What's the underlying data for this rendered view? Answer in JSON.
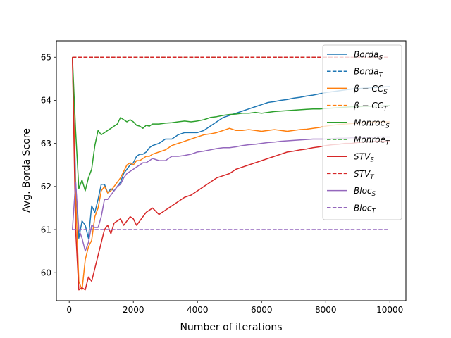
{
  "chart_data": {
    "type": "line",
    "title": "",
    "xlabel": "Number of iterations",
    "ylabel": "Avg. Borda Score",
    "xlim": [
      -400,
      10500
    ],
    "ylim": [
      59.35,
      65.38
    ],
    "xticks": [
      0,
      2000,
      4000,
      6000,
      8000,
      10000
    ],
    "xtick_labels": [
      "0",
      "2000",
      "4000",
      "6000",
      "8000",
      "10000"
    ],
    "yticks": [
      60,
      61,
      62,
      63,
      64,
      65
    ],
    "ytick_labels": [
      "60",
      "61",
      "62",
      "63",
      "64",
      "65"
    ],
    "grid": false,
    "legend_position": "top-right",
    "series": [
      {
        "name": "Borda_S",
        "label_main": "Borda",
        "label_sub": "S",
        "color": "#1f77b4",
        "style": "solid",
        "x": [
          100,
          200,
          300,
          400,
          500,
          600,
          700,
          800,
          900,
          1000,
          1100,
          1200,
          1300,
          1400,
          1500,
          1600,
          1700,
          1800,
          1900,
          2000,
          2100,
          2200,
          2300,
          2400,
          2500,
          2600,
          2800,
          3000,
          3200,
          3400,
          3600,
          3800,
          4000,
          4200,
          4400,
          4600,
          4800,
          5000,
          5200,
          5400,
          5600,
          5800,
          6000,
          6200,
          6400,
          6600,
          6800,
          7000,
          7200,
          7400,
          7600,
          7800,
          8000,
          8200,
          8400,
          8600,
          8800,
          9000,
          9200,
          9400,
          9600,
          9800,
          10000
        ],
        "y": [
          65.0,
          62.1,
          60.8,
          61.2,
          61.1,
          60.8,
          61.55,
          61.4,
          61.7,
          62.05,
          62.05,
          61.85,
          61.95,
          61.9,
          62.0,
          62.1,
          62.3,
          62.4,
          62.5,
          62.55,
          62.7,
          62.75,
          62.75,
          62.8,
          62.9,
          62.95,
          63.0,
          63.1,
          63.1,
          63.2,
          63.25,
          63.25,
          63.25,
          63.3,
          63.4,
          63.5,
          63.6,
          63.65,
          63.7,
          63.75,
          63.8,
          63.85,
          63.9,
          63.95,
          63.97,
          64.0,
          64.02,
          64.05,
          64.07,
          64.1,
          64.12,
          64.15,
          64.18,
          64.2,
          64.22,
          64.24,
          64.26,
          64.27,
          64.28,
          64.29,
          64.3,
          64.31,
          64.32
        ]
      },
      {
        "name": "Borda_T",
        "label_main": "Borda",
        "label_sub": "T",
        "color": "#1f77b4",
        "style": "dashed",
        "x": [
          100,
          10000
        ],
        "y": [
          65.0,
          65.0
        ]
      },
      {
        "name": "β−CC_S",
        "label_main": "β − CC",
        "label_sub": "S",
        "color": "#ff7f0e",
        "style": "solid",
        "x": [
          100,
          200,
          300,
          400,
          500,
          600,
          700,
          800,
          900,
          1000,
          1100,
          1200,
          1300,
          1400,
          1500,
          1600,
          1700,
          1800,
          1900,
          2000,
          2100,
          2200,
          2300,
          2400,
          2500,
          2600,
          2800,
          3000,
          3200,
          3400,
          3600,
          3800,
          4000,
          4200,
          4400,
          4600,
          4800,
          5000,
          5200,
          5400,
          5600,
          5800,
          6000,
          6200,
          6400,
          6600,
          6800,
          7000,
          7200,
          7400,
          7600,
          7800,
          8000,
          8200,
          8400,
          8600,
          8800,
          9000,
          9200,
          9400,
          9600,
          9800,
          10000
        ],
        "y": [
          65.0,
          61.8,
          59.8,
          59.6,
          60.3,
          60.6,
          60.75,
          61.3,
          61.5,
          61.9,
          62.0,
          61.85,
          61.9,
          62.0,
          62.1,
          62.2,
          62.35,
          62.5,
          62.55,
          62.5,
          62.6,
          62.6,
          62.65,
          62.7,
          62.7,
          62.75,
          62.8,
          62.85,
          62.95,
          63.0,
          63.05,
          63.1,
          63.15,
          63.2,
          63.22,
          63.25,
          63.3,
          63.35,
          63.3,
          63.3,
          63.32,
          63.3,
          63.28,
          63.3,
          63.32,
          63.3,
          63.28,
          63.3,
          63.32,
          63.33,
          63.35,
          63.37,
          63.4,
          63.42,
          63.44,
          63.45,
          63.46,
          63.47,
          63.48,
          63.49,
          63.5,
          63.5,
          63.5
        ]
      },
      {
        "name": "β−CC_T",
        "label_main": "β − CC",
        "label_sub": "T",
        "color": "#ff7f0e",
        "style": "dashed",
        "x": [
          100,
          10000
        ],
        "y": [
          65.0,
          65.0
        ]
      },
      {
        "name": "Monroe_S",
        "label_main": "Monroe",
        "label_sub": "S",
        "color": "#2ca02c",
        "style": "solid",
        "x": [
          100,
          200,
          300,
          400,
          500,
          600,
          700,
          800,
          900,
          1000,
          1100,
          1200,
          1300,
          1400,
          1500,
          1600,
          1700,
          1800,
          1900,
          2000,
          2100,
          2200,
          2300,
          2400,
          2500,
          2600,
          2800,
          3000,
          3200,
          3400,
          3600,
          3800,
          4000,
          4200,
          4400,
          4600,
          4800,
          5000,
          5200,
          5400,
          5600,
          5800,
          6000,
          6200,
          6400,
          6600,
          6800,
          7000,
          7200,
          7400,
          7600,
          7800,
          8000,
          8200,
          8400,
          8600,
          8800,
          9000,
          9200,
          9400,
          9600,
          9800,
          10000
        ],
        "y": [
          65.0,
          63.3,
          61.95,
          62.15,
          61.9,
          62.2,
          62.4,
          62.95,
          63.3,
          63.2,
          63.25,
          63.3,
          63.35,
          63.4,
          63.45,
          63.6,
          63.55,
          63.5,
          63.55,
          63.5,
          63.42,
          63.4,
          63.35,
          63.42,
          63.4,
          63.45,
          63.45,
          63.47,
          63.48,
          63.5,
          63.52,
          63.5,
          63.52,
          63.55,
          63.6,
          63.62,
          63.65,
          63.67,
          63.68,
          63.7,
          63.7,
          63.72,
          63.7,
          63.72,
          63.74,
          63.75,
          63.76,
          63.77,
          63.78,
          63.79,
          63.8,
          63.8,
          63.81,
          63.82,
          63.83,
          63.84,
          63.85,
          63.85,
          63.86,
          63.86,
          63.87,
          63.87,
          63.88
        ]
      },
      {
        "name": "Monroe_T",
        "label_main": "Monroe",
        "label_sub": "T",
        "color": "#2ca02c",
        "style": "dashed",
        "x": [
          100,
          10000
        ],
        "y": [
          65.0,
          65.0
        ]
      },
      {
        "name": "STV_S",
        "label_main": "STV",
        "label_sub": "S",
        "color": "#d62728",
        "style": "solid",
        "x": [
          100,
          200,
          300,
          400,
          500,
          600,
          700,
          800,
          900,
          1000,
          1100,
          1200,
          1300,
          1400,
          1500,
          1600,
          1700,
          1800,
          1900,
          2000,
          2100,
          2200,
          2300,
          2400,
          2500,
          2600,
          2800,
          3000,
          3200,
          3400,
          3600,
          3800,
          4000,
          4200,
          4400,
          4600,
          4800,
          5000,
          5200,
          5400,
          5600,
          5800,
          6000,
          6200,
          6400,
          6600,
          6800,
          7000,
          7200,
          7400,
          7600,
          7800,
          8000,
          8200,
          8400,
          8600,
          8800,
          9000,
          9200,
          9400,
          9600,
          9800,
          10000
        ],
        "y": [
          65.0,
          61.0,
          59.6,
          59.65,
          59.6,
          59.9,
          59.8,
          60.1,
          60.4,
          60.7,
          61.0,
          61.1,
          60.9,
          61.15,
          61.2,
          61.25,
          61.1,
          61.2,
          61.3,
          61.25,
          61.1,
          61.2,
          61.3,
          61.4,
          61.45,
          61.5,
          61.35,
          61.45,
          61.55,
          61.65,
          61.75,
          61.8,
          61.9,
          62.0,
          62.1,
          62.2,
          62.25,
          62.3,
          62.4,
          62.45,
          62.5,
          62.55,
          62.6,
          62.65,
          62.7,
          62.75,
          62.8,
          62.82,
          62.85,
          62.87,
          62.9,
          62.92,
          62.95,
          62.97,
          62.98,
          63.0,
          63.0,
          63.02,
          63.03,
          63.04,
          63.05,
          63.05,
          63.05
        ]
      },
      {
        "name": "STV_T",
        "label_main": "STV",
        "label_sub": "T",
        "color": "#d62728",
        "style": "dashed",
        "x": [
          100,
          10000
        ],
        "y": [
          65.0,
          65.0
        ]
      },
      {
        "name": "Bloc_S",
        "label_main": "Bloc",
        "label_sub": "S",
        "color": "#9467bd",
        "style": "solid",
        "x": [
          100,
          200,
          300,
          400,
          500,
          600,
          700,
          800,
          900,
          1000,
          1100,
          1200,
          1300,
          1400,
          1500,
          1600,
          1700,
          1800,
          1900,
          2000,
          2100,
          2200,
          2300,
          2400,
          2500,
          2600,
          2800,
          3000,
          3200,
          3400,
          3600,
          3800,
          4000,
          4200,
          4400,
          4600,
          4800,
          5000,
          5200,
          5400,
          5600,
          5800,
          6000,
          6200,
          6400,
          6600,
          6800,
          7000,
          7200,
          7400,
          7600,
          7800,
          8000,
          8200,
          8400,
          8600,
          8800,
          9000,
          9200,
          9400,
          9600,
          9800,
          10000
        ],
        "y": [
          61.0,
          62.1,
          61.0,
          60.8,
          60.5,
          60.7,
          61.1,
          61.05,
          61.05,
          61.3,
          61.7,
          61.7,
          61.8,
          61.9,
          62.0,
          62.05,
          62.2,
          62.3,
          62.35,
          62.4,
          62.45,
          62.5,
          62.55,
          62.55,
          62.6,
          62.65,
          62.6,
          62.6,
          62.7,
          62.7,
          62.72,
          62.75,
          62.8,
          62.82,
          62.85,
          62.88,
          62.9,
          62.9,
          62.92,
          62.95,
          62.97,
          62.98,
          63.0,
          63.02,
          63.03,
          63.05,
          63.06,
          63.07,
          63.08,
          63.09,
          63.1,
          63.1,
          63.1,
          63.11,
          63.12,
          63.12,
          63.13,
          63.13,
          63.14,
          63.14,
          63.15,
          63.15,
          63.15
        ]
      },
      {
        "name": "Bloc_T",
        "label_main": "Bloc",
        "label_sub": "T",
        "color": "#9467bd",
        "style": "dashed",
        "x": [
          100,
          10000
        ],
        "y": [
          61.0,
          61.0
        ]
      }
    ]
  }
}
